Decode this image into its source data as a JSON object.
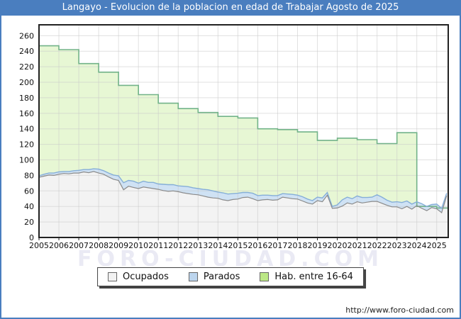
{
  "window": {
    "title": "Langayo - Evolucion de la poblacion en edad de Trabajar Agosto de 2025"
  },
  "watermark": {
    "text": "FORO-CIUDAD.COM",
    "color": "#eaeaf4"
  },
  "footer": {
    "url": "http://www.foro-ciudad.com"
  },
  "colors": {
    "titlebar_bg": "#4a7ebf",
    "titlebar_text": "#ffffff",
    "page_border": "#4a7ebf",
    "plot_border": "#222222",
    "grid": "#c9c9c9",
    "axis_text": "#111111"
  },
  "legend": {
    "items": [
      {
        "label": "Ocupados",
        "swatch_fill": "#f2f2f2",
        "swatch_border": "#666666"
      },
      {
        "label": "Parados",
        "swatch_fill": "#bcd5ee",
        "swatch_border": "#666666"
      },
      {
        "label": "Hab. entre 16-64",
        "swatch_fill": "#bce886",
        "swatch_border": "#666666"
      }
    ]
  },
  "chart_data": {
    "type": "area",
    "title": "Langayo - Evolucion de la poblacion en edad de Trabajar Agosto de 2025",
    "xlabel": "",
    "ylabel": "",
    "xlim": [
      2005,
      2025.58
    ],
    "ylim": [
      0,
      274
    ],
    "x_ticks": [
      2005,
      2006,
      2007,
      2008,
      2009,
      2010,
      2011,
      2012,
      2013,
      2014,
      2015,
      2016,
      2017,
      2018,
      2019,
      2020,
      2021,
      2022,
      2023,
      2024,
      2025
    ],
    "y_ticks": [
      0,
      20,
      40,
      60,
      80,
      100,
      120,
      140,
      160,
      180,
      200,
      220,
      240,
      260
    ],
    "grid": true,
    "legend_position": "bottom",
    "series": [
      {
        "name": "Ocupados",
        "mode": "line-area",
        "x_start": 2005,
        "x_step": 0.25,
        "line_color": "#8a8a8a",
        "fill_color": "#f3f3f3",
        "values": [
          77.5,
          79,
          80.5,
          80,
          81.5,
          82.5,
          82,
          83,
          83,
          84.5,
          83.5,
          85,
          83,
          81.5,
          78,
          75,
          73.5,
          61.5,
          66,
          64.5,
          63,
          65,
          64,
          63,
          62,
          60.5,
          59.5,
          60,
          59,
          57.5,
          56.5,
          55.5,
          55,
          53.5,
          52,
          51,
          50.5,
          48.5,
          47.5,
          49,
          49.5,
          51.5,
          52,
          50,
          47.5,
          48.5,
          49,
          48,
          48.5,
          52,
          51,
          50,
          49.5,
          47,
          44.5,
          43,
          47.5,
          46,
          54.5,
          37.5,
          38,
          40.5,
          44.5,
          43,
          46,
          44.5,
          45.5,
          46.5,
          46.5,
          44,
          41.5,
          39.5,
          39.5,
          37,
          40,
          36.5,
          41,
          37.5,
          34.5,
          38.5,
          37,
          32,
          54
        ]
      },
      {
        "name": "Parados",
        "mode": "stacked-on-Ocupados",
        "x_start": 2005,
        "x_step": 0.25,
        "line_color": "#85aed8",
        "fill_color": "#cfe2f4",
        "values": [
          2,
          2.5,
          2.5,
          3,
          3,
          2.5,
          3,
          3,
          3.5,
          3,
          4,
          3.5,
          5,
          4.5,
          5,
          5.5,
          6,
          9,
          7.5,
          8,
          7,
          7.5,
          7,
          8,
          7,
          8,
          8.5,
          8,
          7.5,
          8.5,
          9,
          8.5,
          8,
          8.5,
          9.5,
          9,
          8,
          9,
          8.5,
          7.5,
          7.5,
          6.5,
          6,
          7,
          6.5,
          6,
          5.5,
          6,
          5.5,
          4.5,
          5,
          5.5,
          5,
          5.5,
          5,
          4.5,
          4.5,
          5,
          3.5,
          2.5,
          4,
          8,
          7.5,
          7,
          7.5,
          7,
          6,
          5.5,
          8.5,
          8,
          6.5,
          6,
          6.5,
          8,
          7,
          6.5,
          5,
          6,
          5.5,
          4,
          6,
          5.5,
          3
        ]
      },
      {
        "name": "Hab. entre 16-64",
        "mode": "step-annual",
        "line_color": "#72b389",
        "fill_color": "#e7f7d4",
        "years": [
          2005,
          2006,
          2007,
          2008,
          2009,
          2010,
          2011,
          2012,
          2013,
          2014,
          2015,
          2016,
          2017,
          2018,
          2019,
          2020,
          2021,
          2022,
          2023,
          2024,
          2025
        ],
        "values": [
          247,
          242,
          224,
          213,
          196,
          184,
          173,
          166,
          161,
          156,
          154,
          140,
          139,
          136,
          125,
          128,
          126,
          121,
          135,
          40,
          38
        ]
      }
    ]
  }
}
